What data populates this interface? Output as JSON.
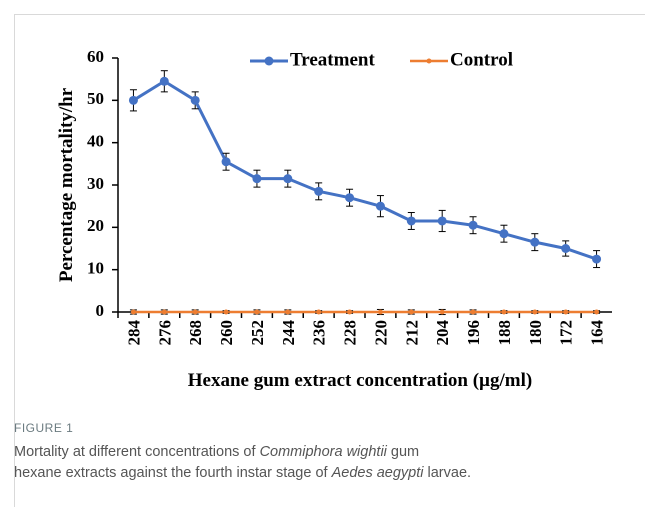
{
  "chart_data": {
    "type": "line",
    "categories": [
      "284",
      "276",
      "268",
      "260",
      "252",
      "244",
      "236",
      "228",
      "220",
      "212",
      "204",
      "196",
      "188",
      "180",
      "172",
      "164"
    ],
    "series": [
      {
        "name": "Treatment",
        "color": "#4472c4",
        "values": [
          50,
          54.5,
          50,
          35.5,
          31.5,
          31.5,
          28.5,
          27,
          25,
          21.5,
          21.5,
          20.5,
          18.5,
          16.5,
          15,
          12.5
        ],
        "errors": [
          2.5,
          2.5,
          2,
          2,
          2,
          2,
          2,
          2,
          2.5,
          2,
          2.5,
          2,
          2,
          2,
          1.8,
          2
        ]
      },
      {
        "name": "Control",
        "color": "#ed7d31",
        "values": [
          0,
          0,
          0,
          0,
          0,
          0,
          0,
          0,
          0,
          0,
          0,
          0,
          0,
          0,
          0,
          0
        ],
        "errors": [
          0.5,
          0.5,
          0.5,
          0.3,
          0.5,
          0.5,
          0.3,
          0.3,
          0.6,
          0.5,
          0.6,
          0.5,
          0.3,
          0.3,
          0.3,
          0.3
        ]
      }
    ],
    "xlabel": "Hexane gum extract concentration (µg/ml)",
    "ylabel": "Percentage mortality/hr",
    "ylim": [
      0,
      60
    ],
    "yticks": [
      0,
      10,
      20,
      30,
      40,
      50,
      60
    ],
    "grid": false,
    "legend": "top"
  },
  "caption": {
    "label": "FIGURE 1",
    "segments": [
      "Mortality at different concentrations of ",
      "Commiphora wightii",
      " gum",
      "hexane extracts against the fourth instar stage of ",
      "Aedes aegypti",
      " larvae."
    ]
  }
}
